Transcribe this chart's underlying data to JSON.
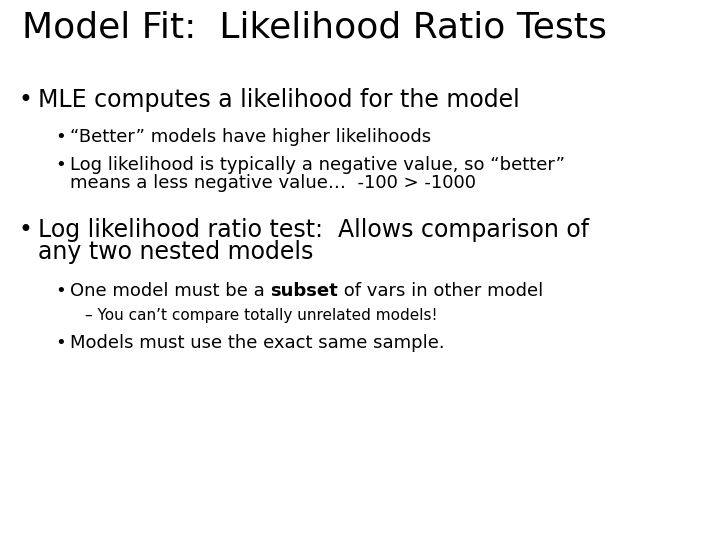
{
  "title": "Model Fit:  Likelihood Ratio Tests",
  "background_color": "#ffffff",
  "text_color": "#000000",
  "title_fontsize": 26,
  "body_fontsize": 17,
  "sub_fontsize": 13,
  "subsub_fontsize": 11,
  "bullet1": "MLE computes a likelihood for the model",
  "sub1a": "“Better” models have higher likelihoods",
  "sub1b_line1": "Log likelihood is typically a negative value, so “better”",
  "sub1b_line2": "means a less negative value…  -100 > -1000",
  "bullet2_line1": "Log likelihood ratio test:  Allows comparison of",
  "bullet2_line2": "any two nested models",
  "sub2a_pre": "One model must be a ",
  "sub2a_bold": "subset",
  "sub2a_post": " of vars in other model",
  "sub2b": "– You can’t compare totally unrelated models!",
  "sub2c": "Models must use the exact same sample."
}
